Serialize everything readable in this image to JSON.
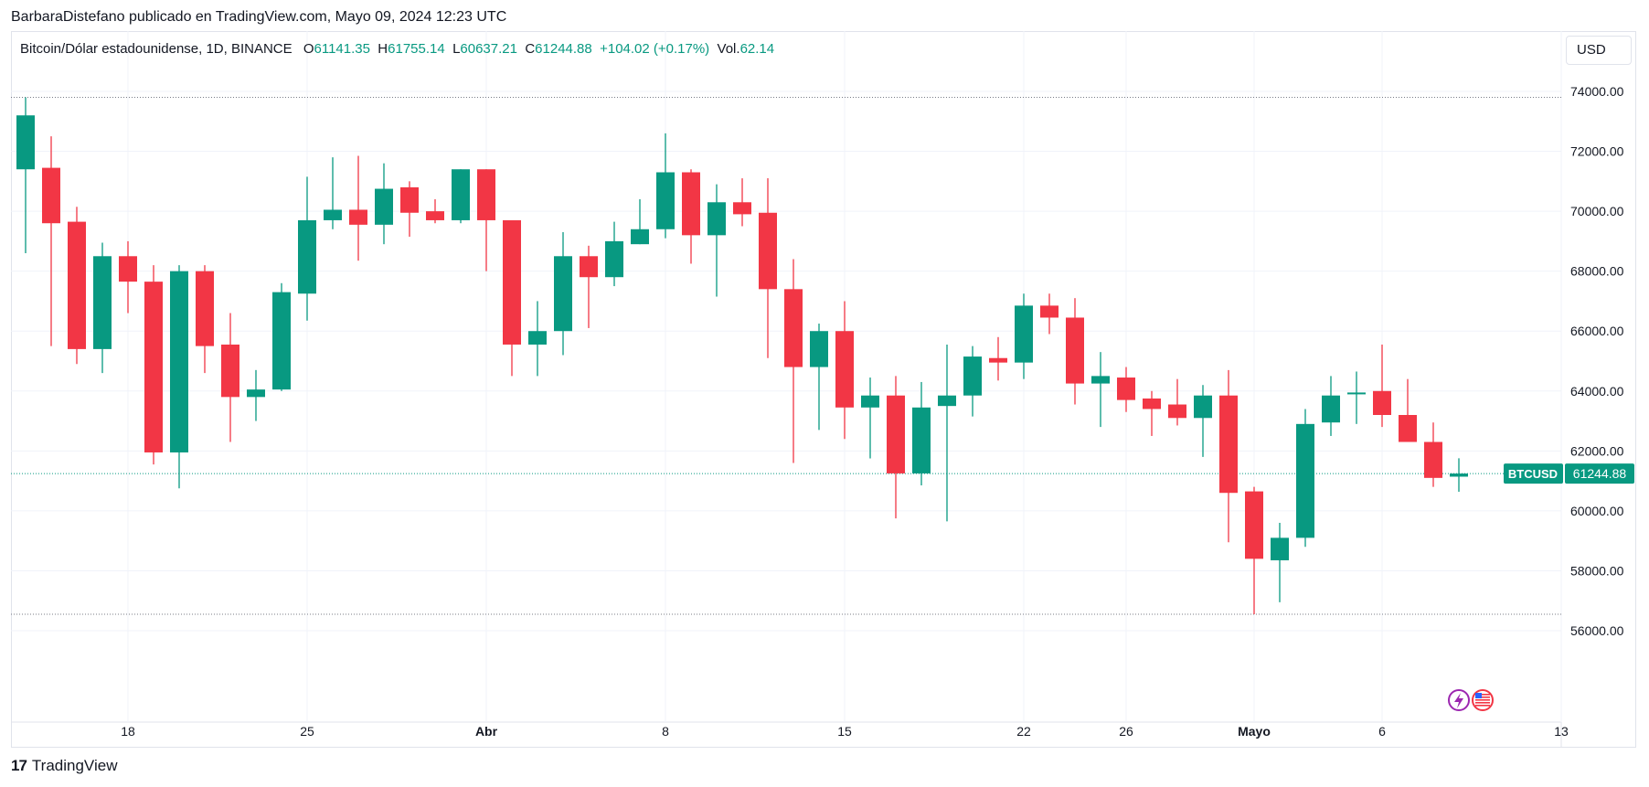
{
  "header": {
    "text": "BarbaraDistefano publicado en TradingView.com, Mayo 09, 2024 12:23 UTC"
  },
  "legend": {
    "symbol": "Bitcoin/Dólar estadounidense, 1D, BINANCE",
    "o_label": "O",
    "o_value": "61141.35",
    "h_label": "H",
    "h_value": "61755.14",
    "l_label": "L",
    "l_value": "60637.21",
    "c_label": "C",
    "c_value": "61244.88",
    "change": "+104.02 (+0.17%)",
    "vol_label": "Vol.",
    "vol_value": "62.14"
  },
  "currency_button": {
    "label": "USD"
  },
  "price_tag": {
    "ticker": "BTCUSD",
    "price": "61244.88"
  },
  "footer": {
    "brand": "TradingView",
    "logo_text": "17"
  },
  "colors": {
    "up": "#089981",
    "down": "#f23645",
    "grid": "#f0f3fa",
    "text": "#131722"
  },
  "chart_data": {
    "type": "candlestick",
    "title": "Bitcoin/Dólar estadounidense, 1D, BINANCE",
    "ylim": [
      54000,
      75000
    ],
    "y_ticks": [
      "74000.00",
      "72000.00",
      "70000.00",
      "68000.00",
      "66000.00",
      "64000.00",
      "62000.00",
      "60000.00",
      "58000.00",
      "56000.00"
    ],
    "x_ticks": [
      {
        "label": "18",
        "index": 4
      },
      {
        "label": "25",
        "index": 11
      },
      {
        "label": "Abr",
        "index": 18
      },
      {
        "label": "8",
        "index": 25
      },
      {
        "label": "15",
        "index": 32
      },
      {
        "label": "22",
        "index": 39
      },
      {
        "label": "26",
        "index": 43
      },
      {
        "label": "Mayo",
        "index": 48
      },
      {
        "label": "6",
        "index": 53
      },
      {
        "label": "13",
        "index": 60
      }
    ],
    "reference_lines": [
      73800,
      56550,
      61244.88
    ],
    "candles": [
      {
        "o": 71400,
        "h": 73800,
        "l": 68600,
        "c": 73200
      },
      {
        "o": 71450,
        "h": 72500,
        "l": 65500,
        "c": 69600
      },
      {
        "o": 69650,
        "h": 70150,
        "l": 64900,
        "c": 65400
      },
      {
        "o": 65400,
        "h": 68950,
        "l": 64600,
        "c": 68500
      },
      {
        "o": 68500,
        "h": 69000,
        "l": 66600,
        "c": 67650
      },
      {
        "o": 67650,
        "h": 68200,
        "l": 61550,
        "c": 61950
      },
      {
        "o": 61950,
        "h": 68200,
        "l": 60750,
        "c": 68000
      },
      {
        "o": 68000,
        "h": 68200,
        "l": 64600,
        "c": 65500
      },
      {
        "o": 65550,
        "h": 66600,
        "l": 62300,
        "c": 63800
      },
      {
        "o": 63800,
        "h": 64700,
        "l": 63000,
        "c": 64050
      },
      {
        "o": 64050,
        "h": 67600,
        "l": 64000,
        "c": 67300
      },
      {
        "o": 67250,
        "h": 71150,
        "l": 66350,
        "c": 69700
      },
      {
        "o": 69700,
        "h": 71800,
        "l": 69400,
        "c": 70050
      },
      {
        "o": 70050,
        "h": 71850,
        "l": 68350,
        "c": 69550
      },
      {
        "o": 69550,
        "h": 71600,
        "l": 68900,
        "c": 70750
      },
      {
        "o": 70800,
        "h": 71000,
        "l": 69150,
        "c": 69950
      },
      {
        "o": 70000,
        "h": 70400,
        "l": 69600,
        "c": 69700
      },
      {
        "o": 69700,
        "h": 71400,
        "l": 69600,
        "c": 71400
      },
      {
        "o": 71400,
        "h": 71400,
        "l": 68000,
        "c": 69700
      },
      {
        "o": 69700,
        "h": 69700,
        "l": 64500,
        "c": 65550
      },
      {
        "o": 65550,
        "h": 67000,
        "l": 64500,
        "c": 66000
      },
      {
        "o": 66000,
        "h": 69300,
        "l": 65200,
        "c": 68500
      },
      {
        "o": 68500,
        "h": 68850,
        "l": 66100,
        "c": 67800
      },
      {
        "o": 67800,
        "h": 69650,
        "l": 67500,
        "c": 69000
      },
      {
        "o": 68900,
        "h": 70400,
        "l": 68900,
        "c": 69400
      },
      {
        "o": 69400,
        "h": 72600,
        "l": 69100,
        "c": 71300
      },
      {
        "o": 71300,
        "h": 71400,
        "l": 68250,
        "c": 69200
      },
      {
        "o": 69200,
        "h": 70900,
        "l": 67150,
        "c": 70300
      },
      {
        "o": 70300,
        "h": 71100,
        "l": 69500,
        "c": 69900
      },
      {
        "o": 69950,
        "h": 71100,
        "l": 65100,
        "c": 67400
      },
      {
        "o": 67400,
        "h": 68400,
        "l": 61600,
        "c": 64800
      },
      {
        "o": 64800,
        "h": 66250,
        "l": 62700,
        "c": 66000
      },
      {
        "o": 66000,
        "h": 67000,
        "l": 62400,
        "c": 63450
      },
      {
        "o": 63450,
        "h": 64450,
        "l": 61750,
        "c": 63850
      },
      {
        "o": 63850,
        "h": 64500,
        "l": 59750,
        "c": 61250
      },
      {
        "o": 61250,
        "h": 64300,
        "l": 60850,
        "c": 63450
      },
      {
        "o": 63500,
        "h": 65550,
        "l": 59650,
        "c": 63850
      },
      {
        "o": 63850,
        "h": 65500,
        "l": 63150,
        "c": 65150
      },
      {
        "o": 65100,
        "h": 65800,
        "l": 64350,
        "c": 64950
      },
      {
        "o": 64950,
        "h": 67250,
        "l": 64400,
        "c": 66850
      },
      {
        "o": 66850,
        "h": 67250,
        "l": 65900,
        "c": 66450
      },
      {
        "o": 66450,
        "h": 67100,
        "l": 63550,
        "c": 64250
      },
      {
        "o": 64250,
        "h": 65300,
        "l": 62800,
        "c": 64500
      },
      {
        "o": 64450,
        "h": 64800,
        "l": 63300,
        "c": 63700
      },
      {
        "o": 63750,
        "h": 64000,
        "l": 62500,
        "c": 63400
      },
      {
        "o": 63550,
        "h": 64400,
        "l": 62850,
        "c": 63100
      },
      {
        "o": 63100,
        "h": 64200,
        "l": 61800,
        "c": 63850
      },
      {
        "o": 63850,
        "h": 64700,
        "l": 58950,
        "c": 60600
      },
      {
        "o": 60650,
        "h": 60800,
        "l": 56550,
        "c": 58400
      },
      {
        "o": 58350,
        "h": 59600,
        "l": 56950,
        "c": 59100
      },
      {
        "o": 59100,
        "h": 63400,
        "l": 58800,
        "c": 62900
      },
      {
        "o": 62950,
        "h": 64500,
        "l": 62500,
        "c": 63850
      },
      {
        "o": 63900,
        "h": 64650,
        "l": 62900,
        "c": 63950
      },
      {
        "o": 64000,
        "h": 65550,
        "l": 62800,
        "c": 63200
      },
      {
        "o": 63200,
        "h": 64400,
        "l": 62300,
        "c": 62300
      },
      {
        "o": 62300,
        "h": 62950,
        "l": 60800,
        "c": 61100
      },
      {
        "o": 61141.35,
        "h": 61755.14,
        "l": 60637.21,
        "c": 61244.88
      }
    ]
  }
}
